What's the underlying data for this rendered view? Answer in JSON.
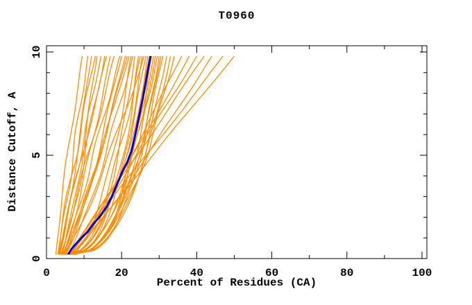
{
  "window": {
    "background": "#ffffff"
  },
  "chart_data": {
    "type": "line",
    "title": "T0960",
    "xlabel": "Percent of Residues (CA)",
    "ylabel": "Distance Cutoff, A",
    "xlim": [
      0,
      101.3
    ],
    "ylim": [
      0,
      10.3
    ],
    "x_ticks_major": [
      0,
      20,
      40,
      60,
      80,
      100
    ],
    "x_ticks_minor": [
      10,
      30,
      50,
      70,
      90
    ],
    "y_ticks_major": [
      0,
      5,
      10
    ],
    "y_ticks_minor": [
      1,
      2,
      3,
      4,
      6,
      7,
      8,
      9
    ],
    "grid": false,
    "legend": false,
    "frame_color": "#000000",
    "model_color": "#ff8c00",
    "highlight_color": "#0000dd",
    "highlight_series": {
      "name": "highlighted-model",
      "points": [
        [
          5.8,
          0.2
        ],
        [
          6.6,
          0.45
        ],
        [
          7.8,
          0.7
        ],
        [
          9.3,
          1.0
        ],
        [
          11.0,
          1.3
        ],
        [
          12.6,
          1.7
        ],
        [
          14.5,
          2.1
        ],
        [
          16.0,
          2.5
        ],
        [
          17.4,
          3.0
        ],
        [
          18.8,
          3.6
        ],
        [
          20.2,
          4.2
        ],
        [
          21.6,
          4.7
        ],
        [
          22.6,
          5.2
        ],
        [
          23.4,
          5.8
        ],
        [
          24.1,
          6.4
        ],
        [
          24.9,
          7.1
        ],
        [
          25.7,
          7.8
        ],
        [
          26.3,
          8.4
        ],
        [
          26.9,
          9.0
        ],
        [
          27.3,
          9.4
        ],
        [
          27.7,
          9.8
        ]
      ]
    },
    "model_series": {
      "note": "Orange background model curves (percent of CA residues under each distance cutoff). Each curve approximated as x(y)=x_start+(x_end-x_start)*t^shape plus small damped wiggle, with t=(y-0.2)/9.6 over the sampled cutoff range.",
      "y_range": [
        0.2,
        9.8
      ],
      "curve_format": [
        "x_start",
        "x_end",
        "shape",
        "wiggle_amp",
        "wiggle_freq",
        "wiggle_phase"
      ],
      "curves": [
        [
          2.5,
          9.5,
          1.15,
          0.3,
          1.5,
          0.1
        ],
        [
          3.2,
          11.0,
          1.0,
          0.4,
          2.0,
          0.5
        ],
        [
          3.5,
          12.0,
          0.9,
          0.3,
          1.2,
          0.8
        ],
        [
          3.0,
          13.0,
          1.1,
          0.5,
          1.8,
          0.3
        ],
        [
          4.0,
          13.5,
          0.8,
          0.4,
          1.4,
          0.6
        ],
        [
          3.6,
          14.5,
          1.0,
          0.3,
          2.2,
          0.2
        ],
        [
          4.2,
          15.5,
          0.9,
          0.5,
          1.6,
          0.7
        ],
        [
          3.3,
          16.0,
          1.05,
          0.4,
          1.3,
          0.4
        ],
        [
          4.5,
          17.0,
          0.85,
          0.3,
          1.9,
          0.9
        ],
        [
          3.8,
          18.0,
          0.95,
          0.5,
          1.5,
          0.15
        ],
        [
          4.4,
          19.5,
          0.9,
          0.4,
          2.1,
          0.55
        ],
        [
          5.0,
          21.0,
          0.8,
          0.3,
          1.7,
          0.35
        ],
        [
          4.0,
          20.0,
          0.75,
          0.5,
          1.4,
          0.65
        ],
        [
          4.6,
          21.5,
          0.85,
          0.4,
          1.8,
          0.25
        ],
        [
          5.0,
          22.0,
          0.9,
          0.3,
          1.5,
          0.75
        ],
        [
          5.6,
          23.0,
          0.8,
          0.4,
          2.0,
          0.45
        ],
        [
          4.2,
          26.0,
          0.8,
          0.5,
          1.6,
          0.85
        ],
        [
          4.5,
          22.5,
          0.45,
          0.4,
          1.5,
          0.2
        ],
        [
          5.0,
          23.5,
          0.4,
          0.3,
          1.8,
          0.6
        ],
        [
          5.5,
          24.5,
          0.36,
          0.5,
          1.3,
          0.4
        ],
        [
          4.8,
          25.0,
          0.5,
          0.4,
          2.0,
          0.8
        ],
        [
          6.0,
          25.5,
          0.38,
          0.3,
          1.6,
          0.1
        ],
        [
          5.2,
          26.5,
          0.44,
          0.5,
          1.4,
          0.5
        ],
        [
          6.5,
          27.0,
          0.35,
          0.4,
          1.9,
          0.9
        ],
        [
          5.8,
          27.5,
          0.48,
          0.3,
          1.5,
          0.3
        ],
        [
          6.2,
          28.0,
          0.37,
          0.5,
          2.1,
          0.7
        ],
        [
          5.4,
          28.5,
          0.42,
          0.4,
          1.2,
          0.05
        ],
        [
          6.8,
          29.0,
          0.39,
          0.3,
          1.7,
          0.45
        ],
        [
          6.0,
          29.5,
          0.46,
          0.5,
          1.5,
          0.85
        ],
        [
          7.0,
          30.0,
          0.36,
          0.4,
          2.0,
          0.25
        ],
        [
          6.4,
          30.5,
          0.41,
          0.3,
          1.4,
          0.65
        ],
        [
          7.2,
          31.0,
          0.44,
          0.5,
          1.8,
          0.15
        ],
        [
          6.6,
          32.0,
          0.39,
          0.4,
          1.6,
          0.55
        ],
        [
          7.5,
          33.0,
          0.43,
          0.3,
          1.3,
          0.95
        ],
        [
          7.0,
          34.0,
          0.47,
          0.5,
          1.9,
          0.35
        ],
        [
          5.5,
          36.0,
          0.85,
          0.4,
          1.5,
          0.5
        ],
        [
          6.0,
          38.0,
          0.9,
          0.3,
          1.2,
          0.2
        ],
        [
          6.5,
          40.0,
          0.95,
          0.5,
          1.6,
          0.7
        ],
        [
          5.8,
          42.0,
          1.0,
          0.4,
          1.4,
          0.4
        ],
        [
          7.0,
          44.0,
          0.9,
          0.3,
          1.8,
          0.6
        ],
        [
          6.2,
          47.0,
          1.0,
          0.4,
          1.3,
          0.3
        ],
        [
          6.8,
          50.0,
          1.0,
          0.3,
          1.5,
          0.8
        ]
      ]
    }
  }
}
